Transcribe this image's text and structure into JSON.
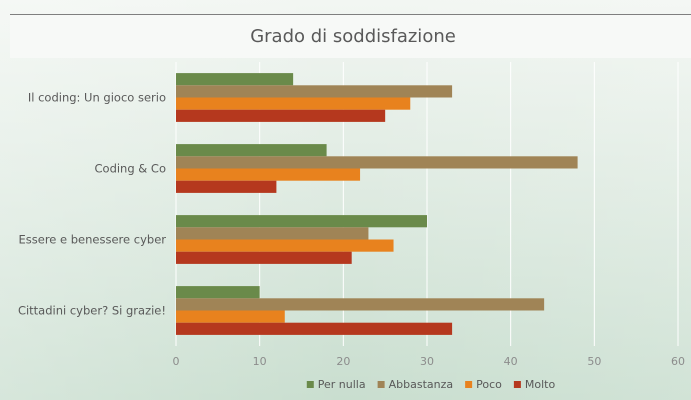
{
  "chart_data": {
    "type": "bar",
    "orientation": "horizontal",
    "title": "Grado di soddisfazione",
    "categories": [
      "Il coding: Un gioco serio",
      "Coding & Co",
      "Essere e benessere cyber",
      "Cittadini cyber? Si grazie!"
    ],
    "series": [
      {
        "name": "Per nulla",
        "color": "#6a8a4a",
        "values": [
          14,
          18,
          30,
          10
        ]
      },
      {
        "name": "Abbastanza",
        "color": "#a08456",
        "values": [
          33,
          48,
          23,
          44
        ]
      },
      {
        "name": "Poco",
        "color": "#e8821e",
        "values": [
          28,
          22,
          26,
          13
        ]
      },
      {
        "name": "Molto",
        "color": "#b5381e",
        "values": [
          25,
          12,
          21,
          33
        ]
      }
    ],
    "xlim": [
      0,
      60
    ],
    "ticks": [
      "0",
      "10",
      "20",
      "30",
      "40",
      "50",
      "60"
    ],
    "grid": true,
    "legend_position": "bottom",
    "colors": {
      "background_top": "#f2f6f2",
      "background_bottom": "#c9decf",
      "title_bar": "#f7f9f7",
      "gridline": "#ffffff"
    }
  }
}
